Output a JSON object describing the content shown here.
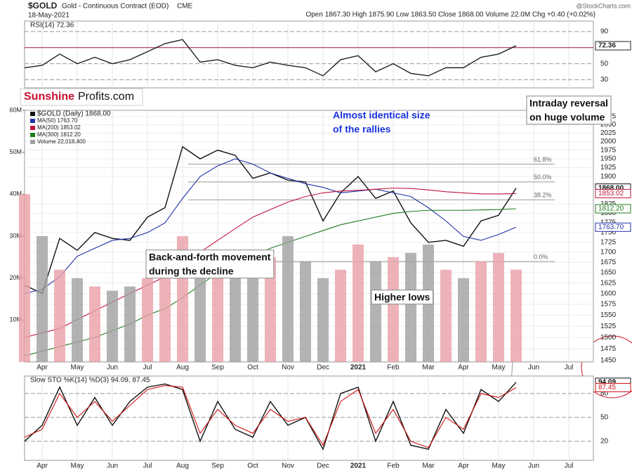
{
  "header": {
    "symbol": "$GOLD",
    "name": "Gold - Continuous Contract (EOD)",
    "exchange": "CME",
    "date": "18-May-2021",
    "quote": "Open 1867.30 High 1875.90 Low 1863.50 Close 1868.00 Volume 22.0M Chg +0.40 (+0.02%)",
    "credit": "@StockCharts.com",
    "logo": [
      "Sunshine",
      "Profits.com"
    ]
  },
  "chart_data": [
    {
      "type": "line",
      "title": "RSI(14) 72.36",
      "categories": [
        null,
        "Apr",
        null,
        "May",
        null,
        "Jun",
        null,
        "Jul",
        null,
        "Aug",
        null,
        "Sep",
        null,
        "Oct",
        null,
        "Nov",
        null,
        "Dec",
        null,
        "2021",
        null,
        "Feb",
        null,
        "Mar",
        null,
        "Apr",
        null,
        "May",
        null,
        "Jun",
        null,
        "Jul",
        null
      ],
      "series": [
        {
          "name": "RSI(14)",
          "color": "#222222",
          "tag": "72.36",
          "values": [
            45,
            48,
            62,
            50,
            58,
            50,
            55,
            65,
            75,
            80,
            52,
            55,
            48,
            45,
            52,
            48,
            45,
            35,
            55,
            60,
            40,
            50,
            38,
            35,
            45,
            45,
            58,
            62,
            72.36,
            null,
            null,
            null,
            null
          ]
        }
      ],
      "ylim": [
        20,
        103
      ],
      "yticks": [
        30,
        50,
        90
      ],
      "reference_lines": [
        70
      ]
    },
    {
      "type": "line",
      "log_scale": true,
      "categories": [
        null,
        "Apr",
        null,
        "May",
        null,
        "Jun",
        null,
        "Jul",
        null,
        "Aug",
        null,
        "Sep",
        null,
        "Oct",
        null,
        "Nov",
        null,
        "Dec",
        null,
        "2021",
        null,
        "Feb",
        null,
        "Mar",
        null,
        "Apr",
        null,
        "May",
        null,
        "Jun",
        null,
        "Jul",
        null
      ],
      "series": [
        {
          "name": "$GOLD (Daily) 1868.00",
          "color": "#111111",
          "tag": "1868.00",
          "values": [
            1620,
            1600,
            1735,
            1705,
            1750,
            1735,
            1730,
            1790,
            1815,
            1985,
            1950,
            1975,
            1960,
            1895,
            1910,
            1890,
            1885,
            1780,
            1855,
            1900,
            1840,
            1860,
            1775,
            1725,
            1730,
            1715,
            1780,
            1795,
            1868,
            null,
            null,
            null,
            null
          ]
        },
        {
          "name": "MA(50) 1763.70",
          "color": "#2233aa",
          "tag": "1763.70",
          "values": [
            1600,
            1610,
            1640,
            1690,
            1710,
            1730,
            1735,
            1750,
            1775,
            1840,
            1900,
            1930,
            1950,
            1935,
            1910,
            1895,
            1880,
            1870,
            1855,
            1860,
            1865,
            1855,
            1845,
            1815,
            1780,
            1740,
            1730,
            1745,
            1763.7,
            null,
            null,
            null,
            null
          ]
        },
        {
          "name": "MA(200) 1853.02",
          "color": "#c0143c",
          "tag": "1853.02",
          "values": [
            1500,
            1510,
            1520,
            1540,
            1560,
            1580,
            1600,
            1620,
            1640,
            1670,
            1700,
            1730,
            1760,
            1790,
            1810,
            1830,
            1845,
            1855,
            1860,
            1862,
            1865,
            1868,
            1867,
            1863,
            1858,
            1855,
            1852,
            1852,
            1853.02,
            null,
            null,
            null,
            null
          ]
        },
        {
          "name": "MA(300) 1812.20",
          "color": "#1f7a1f",
          "tag": "1812.20",
          "values": [
            1460,
            1470,
            1480,
            1490,
            1500,
            1515,
            1530,
            1550,
            1565,
            1590,
            1620,
            1650,
            1670,
            1690,
            1710,
            1725,
            1740,
            1755,
            1770,
            1780,
            1790,
            1800,
            1805,
            1808,
            1808,
            1808,
            1809,
            1810,
            1812.2,
            null,
            null,
            null,
            null
          ]
        },
        {
          "name": "Volume 22,018,400",
          "color": "#a0a0a0",
          "type": "bar",
          "axis": "y2",
          "values": [
            40000000,
            30000000,
            22000000,
            20000000,
            18000000,
            17000000,
            18000000,
            20000000,
            24000000,
            30000000,
            26000000,
            22000000,
            24000000,
            26000000,
            25000000,
            30000000,
            24000000,
            20000000,
            22000000,
            28000000,
            24000000,
            25000000,
            26000000,
            28000000,
            22000000,
            20000000,
            24000000,
            26000000,
            22018400,
            null,
            null,
            null,
            null
          ]
        }
      ],
      "ylim": [
        1447,
        2094
      ],
      "yticks": [
        1450,
        1475,
        1500,
        1525,
        1550,
        1575,
        1600,
        1625,
        1650,
        1675,
        1700,
        1725,
        1750,
        1775,
        1800,
        1825,
        1900,
        1925,
        1950,
        1975,
        2000,
        2025,
        2050,
        2075
      ],
      "y2lim": [
        0,
        60000000
      ],
      "y2ticks": [
        {
          "value": 10000000,
          "label": "10M"
        },
        {
          "value": 20000000,
          "label": "20M"
        },
        {
          "value": 30000000,
          "label": "30M"
        },
        {
          "value": 40000000,
          "label": "40M"
        },
        {
          "value": 50000000,
          "label": "50M"
        },
        {
          "value": 60000000,
          "label": "60M"
        }
      ],
      "fib_levels": [
        {
          "label": "61.8%",
          "value": 1935
        },
        {
          "label": "50.0%",
          "value": 1885
        },
        {
          "label": "38.2%",
          "value": 1836
        },
        {
          "label": "0.0%",
          "value": 1677
        }
      ],
      "annotations": [
        {
          "lines": [
            "Almost identical size",
            "of the rallies"
          ]
        },
        {
          "lines": [
            "Intraday reversal",
            "on huge volume"
          ]
        },
        {
          "lines": [
            "Back-and-forth movement",
            "during the decline"
          ]
        },
        {
          "lines": [
            "Higher lows"
          ]
        }
      ]
    },
    {
      "type": "line",
      "title": "Slow STO %K(14) %D(3) 94.09, 87.45",
      "categories": [
        null,
        "Apr",
        null,
        "May",
        null,
        "Jun",
        null,
        "Jul",
        null,
        "Aug",
        null,
        "Sep",
        null,
        "Oct",
        null,
        "Nov",
        null,
        "Dec",
        null,
        "2021",
        null,
        "Feb",
        null,
        "Mar",
        null,
        "Apr",
        null,
        "May",
        null,
        "Jun",
        null,
        "Jul",
        null
      ],
      "series": [
        {
          "name": "%K(14)",
          "color": "#111111",
          "tag": "94.09",
          "values": [
            20,
            40,
            88,
            40,
            75,
            40,
            70,
            88,
            92,
            85,
            20,
            70,
            35,
            25,
            70,
            40,
            50,
            10,
            80,
            88,
            20,
            70,
            15,
            10,
            60,
            30,
            85,
            70,
            94.09,
            null,
            null,
            null,
            null
          ]
        },
        {
          "name": "%D(3)",
          "color": "#d01010",
          "tag": "87.45",
          "values": [
            25,
            35,
            80,
            50,
            70,
            45,
            65,
            85,
            90,
            88,
            30,
            60,
            40,
            30,
            60,
            45,
            50,
            15,
            70,
            85,
            30,
            60,
            20,
            12,
            50,
            35,
            80,
            75,
            87.45,
            null,
            null,
            null,
            null
          ]
        }
      ],
      "ylim": [
        -4,
        102
      ],
      "yticks": [
        20,
        50,
        80
      ]
    }
  ]
}
